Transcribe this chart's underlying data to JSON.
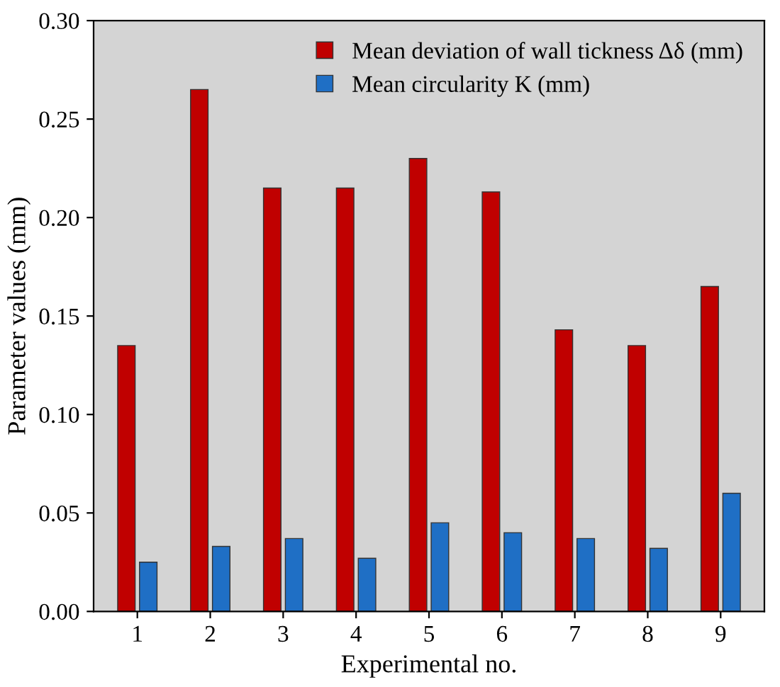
{
  "chart_data": {
    "type": "bar",
    "xlabel": "Experimental no.",
    "ylabel": "Parameter values (mm)",
    "categories": [
      "1",
      "2",
      "3",
      "4",
      "5",
      "6",
      "7",
      "8",
      "9"
    ],
    "series": [
      {
        "name": "Mean deviation of wall tickness Δδ (mm)",
        "color": "#c00000",
        "values": [
          0.135,
          0.265,
          0.215,
          0.215,
          0.23,
          0.213,
          0.143,
          0.135,
          0.165
        ]
      },
      {
        "name": "Mean circularity K (mm)",
        "color": "#1f6fc5",
        "values": [
          0.025,
          0.033,
          0.037,
          0.027,
          0.045,
          0.04,
          0.037,
          0.032,
          0.06
        ]
      }
    ],
    "ylim": [
      0,
      0.3
    ],
    "yticks": [
      {
        "value": 0,
        "label": "0.00"
      },
      {
        "value": 0.05,
        "label": "0.05"
      },
      {
        "value": 0.1,
        "label": "0.10"
      },
      {
        "value": 0.15,
        "label": "0.15"
      },
      {
        "value": 0.2,
        "label": "0.20"
      },
      {
        "value": 0.25,
        "label": "0.25"
      },
      {
        "value": 0.3,
        "label": "0.30"
      }
    ],
    "grid": false,
    "legend": "top right"
  }
}
